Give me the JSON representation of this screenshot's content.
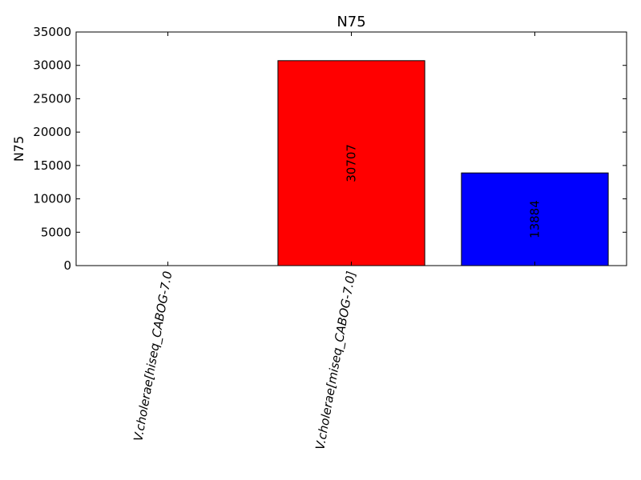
{
  "chart_data": {
    "type": "bar",
    "title": "N75",
    "xlabel": "",
    "ylabel": "N75",
    "ylim": [
      0,
      35000
    ],
    "yticks": [
      0,
      5000,
      10000,
      15000,
      20000,
      25000,
      30000,
      35000
    ],
    "grid": false,
    "legend": "none",
    "categories": [
      "V.cholerae[hiseq_CABOG-7.0",
      "V.cholerae[miseq_CABOG-7.0]",
      ""
    ],
    "values": [
      0,
      30707,
      13884
    ],
    "value_labels": [
      "",
      "30707",
      "13884"
    ],
    "colors": [
      "#ff0000",
      "#ff0000",
      "#0000ff"
    ]
  }
}
